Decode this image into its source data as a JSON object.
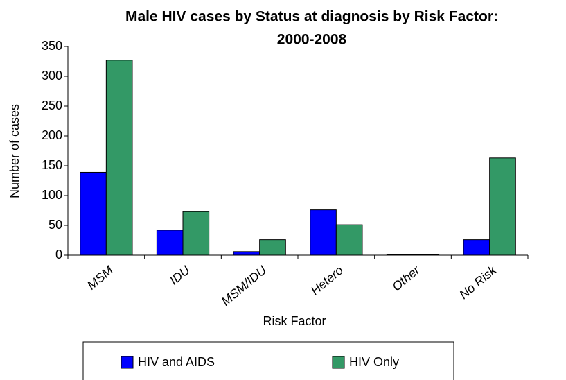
{
  "chart_data": {
    "type": "bar",
    "title": "Male HIV cases by Status at diagnosis by Risk Factor:",
    "subtitle": "2000-2008",
    "x_label": "Risk Factor",
    "y_label": "Number of cases",
    "categories": [
      "MSM",
      "IDU",
      "MSM/IDU",
      "Hetero",
      "Other",
      "No Risk"
    ],
    "series": [
      {
        "name": "HIV and AIDS",
        "color": "#0000ff",
        "values": [
          139,
          42,
          6,
          76,
          1,
          26
        ]
      },
      {
        "name": "HIV Only",
        "color": "#339966",
        "values": [
          327,
          73,
          26,
          51,
          1,
          163
        ]
      }
    ],
    "ylim": [
      0,
      350
    ],
    "yticks": [
      0,
      50,
      100,
      150,
      200,
      250,
      300,
      350
    ],
    "grid": false,
    "legend": "bottom"
  }
}
